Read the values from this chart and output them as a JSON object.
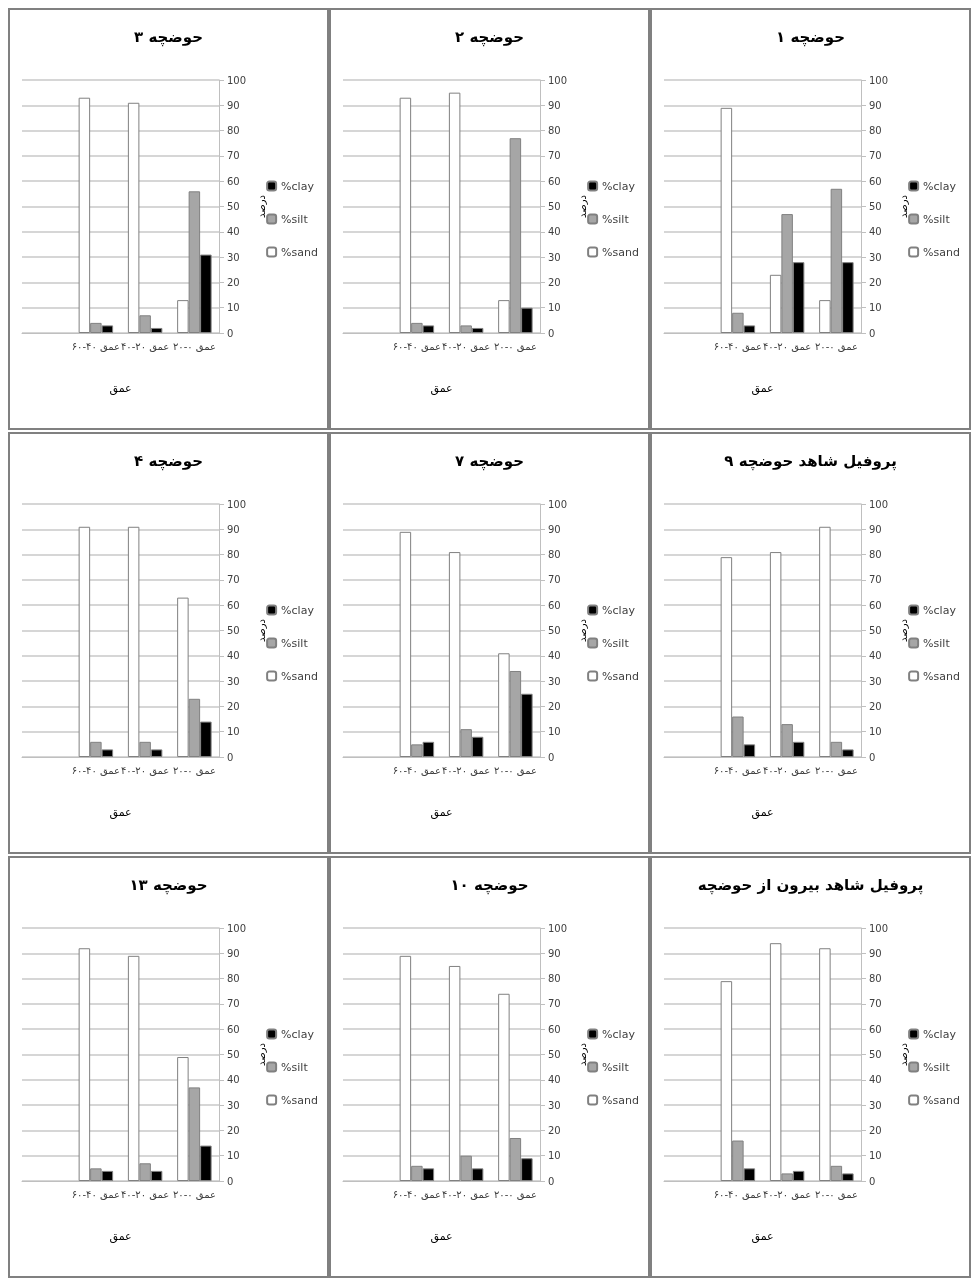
{
  "chart_data": [
    {
      "type": "bar",
      "title": "حوضچه ۱",
      "xlabel": "عمق",
      "ylabel": "درصد",
      "categories": [
        null,
        "عمق ۴۰-۶۰",
        "عمق ۲۰-۴۰",
        "عمق ۰-۲۰"
      ],
      "ylim": [
        0,
        100
      ],
      "yticks": [
        0,
        10,
        20,
        30,
        40,
        50,
        60,
        70,
        80,
        90,
        100
      ],
      "grid": "y",
      "legend": "right",
      "series": [
        {
          "name": "%sand",
          "color": "#ffffff",
          "values": [
            null,
            89,
            23,
            13
          ]
        },
        {
          "name": "%silt",
          "color": "#a6a6a6",
          "values": [
            null,
            8,
            47,
            57
          ]
        },
        {
          "name": "%clay",
          "color": "#000000",
          "values": [
            null,
            3,
            28,
            28
          ]
        }
      ]
    },
    {
      "type": "bar",
      "title": "حوضچه ۲",
      "xlabel": "عمق",
      "ylabel": "درصد",
      "categories": [
        null,
        "عمق ۴۰-۶۰",
        "عمق ۲۰-۴۰",
        "عمق ۰-۲۰"
      ],
      "ylim": [
        0,
        100
      ],
      "yticks": [
        0,
        10,
        20,
        30,
        40,
        50,
        60,
        70,
        80,
        90,
        100
      ],
      "grid": "y",
      "legend": "right",
      "series": [
        {
          "name": "%sand",
          "color": "#ffffff",
          "values": [
            null,
            93,
            95,
            13
          ]
        },
        {
          "name": "%silt",
          "color": "#a6a6a6",
          "values": [
            null,
            4,
            3,
            77
          ]
        },
        {
          "name": "%clay",
          "color": "#000000",
          "values": [
            null,
            3,
            2,
            10
          ]
        }
      ]
    },
    {
      "type": "bar",
      "title": "حوضچه ۳",
      "xlabel": "عمق",
      "ylabel": "درصد",
      "categories": [
        null,
        "عمق ۴۰-۶۰",
        "عمق ۲۰-۴۰",
        "عمق ۰-۲۰"
      ],
      "ylim": [
        0,
        100
      ],
      "yticks": [
        0,
        10,
        20,
        30,
        40,
        50,
        60,
        70,
        80,
        90,
        100
      ],
      "grid": "y",
      "legend": "right",
      "series": [
        {
          "name": "%sand",
          "color": "#ffffff",
          "values": [
            null,
            93,
            91,
            13
          ]
        },
        {
          "name": "%silt",
          "color": "#a6a6a6",
          "values": [
            null,
            4,
            7,
            56
          ]
        },
        {
          "name": "%clay",
          "color": "#000000",
          "values": [
            null,
            3,
            2,
            31
          ]
        }
      ]
    },
    {
      "type": "bar",
      "title": "پروفیل شاهد حوضچه ۹",
      "xlabel": "عمق",
      "ylabel": "درصد",
      "categories": [
        null,
        "عمق ۴۰-۶۰",
        "عمق ۲۰-۴۰",
        "عمق ۰-۲۰"
      ],
      "ylim": [
        0,
        100
      ],
      "yticks": [
        0,
        10,
        20,
        30,
        40,
        50,
        60,
        70,
        80,
        90,
        100
      ],
      "grid": "y",
      "legend": "right",
      "series": [
        {
          "name": "%sand",
          "color": "#ffffff",
          "values": [
            null,
            79,
            81,
            91
          ]
        },
        {
          "name": "%silt",
          "color": "#a6a6a6",
          "values": [
            null,
            16,
            13,
            6
          ]
        },
        {
          "name": "%clay",
          "color": "#000000",
          "values": [
            null,
            5,
            6,
            3
          ]
        }
      ]
    },
    {
      "type": "bar",
      "title": "حوضچه ۷",
      "xlabel": "عمق",
      "ylabel": "درصد",
      "categories": [
        null,
        "عمق ۴۰-۶۰",
        "عمق ۲۰-۴۰",
        "عمق ۰-۲۰"
      ],
      "ylim": [
        0,
        100
      ],
      "yticks": [
        0,
        10,
        20,
        30,
        40,
        50,
        60,
        70,
        80,
        90,
        100
      ],
      "grid": "y",
      "legend": "right",
      "series": [
        {
          "name": "%sand",
          "color": "#ffffff",
          "values": [
            null,
            89,
            81,
            41
          ]
        },
        {
          "name": "%silt",
          "color": "#a6a6a6",
          "values": [
            null,
            5,
            11,
            34
          ]
        },
        {
          "name": "%clay",
          "color": "#000000",
          "values": [
            null,
            6,
            8,
            25
          ]
        }
      ]
    },
    {
      "type": "bar",
      "title": "حوضچه ۴",
      "xlabel": "عمق",
      "ylabel": "درصد",
      "categories": [
        null,
        "عمق ۴۰-۶۰",
        "عمق ۲۰-۴۰",
        "عمق ۰-۲۰"
      ],
      "ylim": [
        0,
        100
      ],
      "yticks": [
        0,
        10,
        20,
        30,
        40,
        50,
        60,
        70,
        80,
        90,
        100
      ],
      "grid": "y",
      "legend": "right",
      "series": [
        {
          "name": "%sand",
          "color": "#ffffff",
          "values": [
            null,
            91,
            91,
            63
          ]
        },
        {
          "name": "%silt",
          "color": "#a6a6a6",
          "values": [
            null,
            6,
            6,
            23
          ]
        },
        {
          "name": "%clay",
          "color": "#000000",
          "values": [
            null,
            3,
            3,
            14
          ]
        }
      ]
    },
    {
      "type": "bar",
      "title": "پروفیل شاهد بیرون از حوضچه",
      "xlabel": "عمق",
      "ylabel": "درصد",
      "categories": [
        null,
        "عمق ۴۰-۶۰",
        "عمق ۲۰-۴۰",
        "عمق ۰-۲۰"
      ],
      "ylim": [
        0,
        100
      ],
      "yticks": [
        0,
        10,
        20,
        30,
        40,
        50,
        60,
        70,
        80,
        90,
        100
      ],
      "grid": "y",
      "legend": "right",
      "series": [
        {
          "name": "%sand",
          "color": "#ffffff",
          "values": [
            null,
            79,
            94,
            92
          ]
        },
        {
          "name": "%silt",
          "color": "#a6a6a6",
          "values": [
            null,
            16,
            3,
            6
          ]
        },
        {
          "name": "%clay",
          "color": "#000000",
          "values": [
            null,
            5,
            4,
            3
          ]
        }
      ]
    },
    {
      "type": "bar",
      "title": "حوضچه ۱۰",
      "xlabel": "عمق",
      "ylabel": "درصد",
      "categories": [
        null,
        "عمق ۴۰-۶۰",
        "عمق ۲۰-۴۰",
        "عمق ۰-۲۰"
      ],
      "ylim": [
        0,
        100
      ],
      "yticks": [
        0,
        10,
        20,
        30,
        40,
        50,
        60,
        70,
        80,
        90,
        100
      ],
      "grid": "y",
      "legend": "right",
      "series": [
        {
          "name": "%sand",
          "color": "#ffffff",
          "values": [
            null,
            89,
            85,
            74
          ]
        },
        {
          "name": "%silt",
          "color": "#a6a6a6",
          "values": [
            null,
            6,
            10,
            17
          ]
        },
        {
          "name": "%clay",
          "color": "#000000",
          "values": [
            null,
            5,
            5,
            9
          ]
        }
      ]
    },
    {
      "type": "bar",
      "title": "حوضچه ۱۳",
      "xlabel": "عمق",
      "ylabel": "درصد",
      "categories": [
        null,
        "عمق ۴۰-۶۰",
        "عمق ۲۰-۴۰",
        "عمق ۰-۲۰"
      ],
      "ylim": [
        0,
        100
      ],
      "yticks": [
        0,
        10,
        20,
        30,
        40,
        50,
        60,
        70,
        80,
        90,
        100
      ],
      "grid": "y",
      "legend": "right",
      "series": [
        {
          "name": "%sand",
          "color": "#ffffff",
          "values": [
            null,
            92,
            89,
            49
          ]
        },
        {
          "name": "%silt",
          "color": "#a6a6a6",
          "values": [
            null,
            5,
            7,
            37
          ]
        },
        {
          "name": "%clay",
          "color": "#000000",
          "values": [
            null,
            4,
            4,
            14
          ]
        }
      ]
    }
  ]
}
